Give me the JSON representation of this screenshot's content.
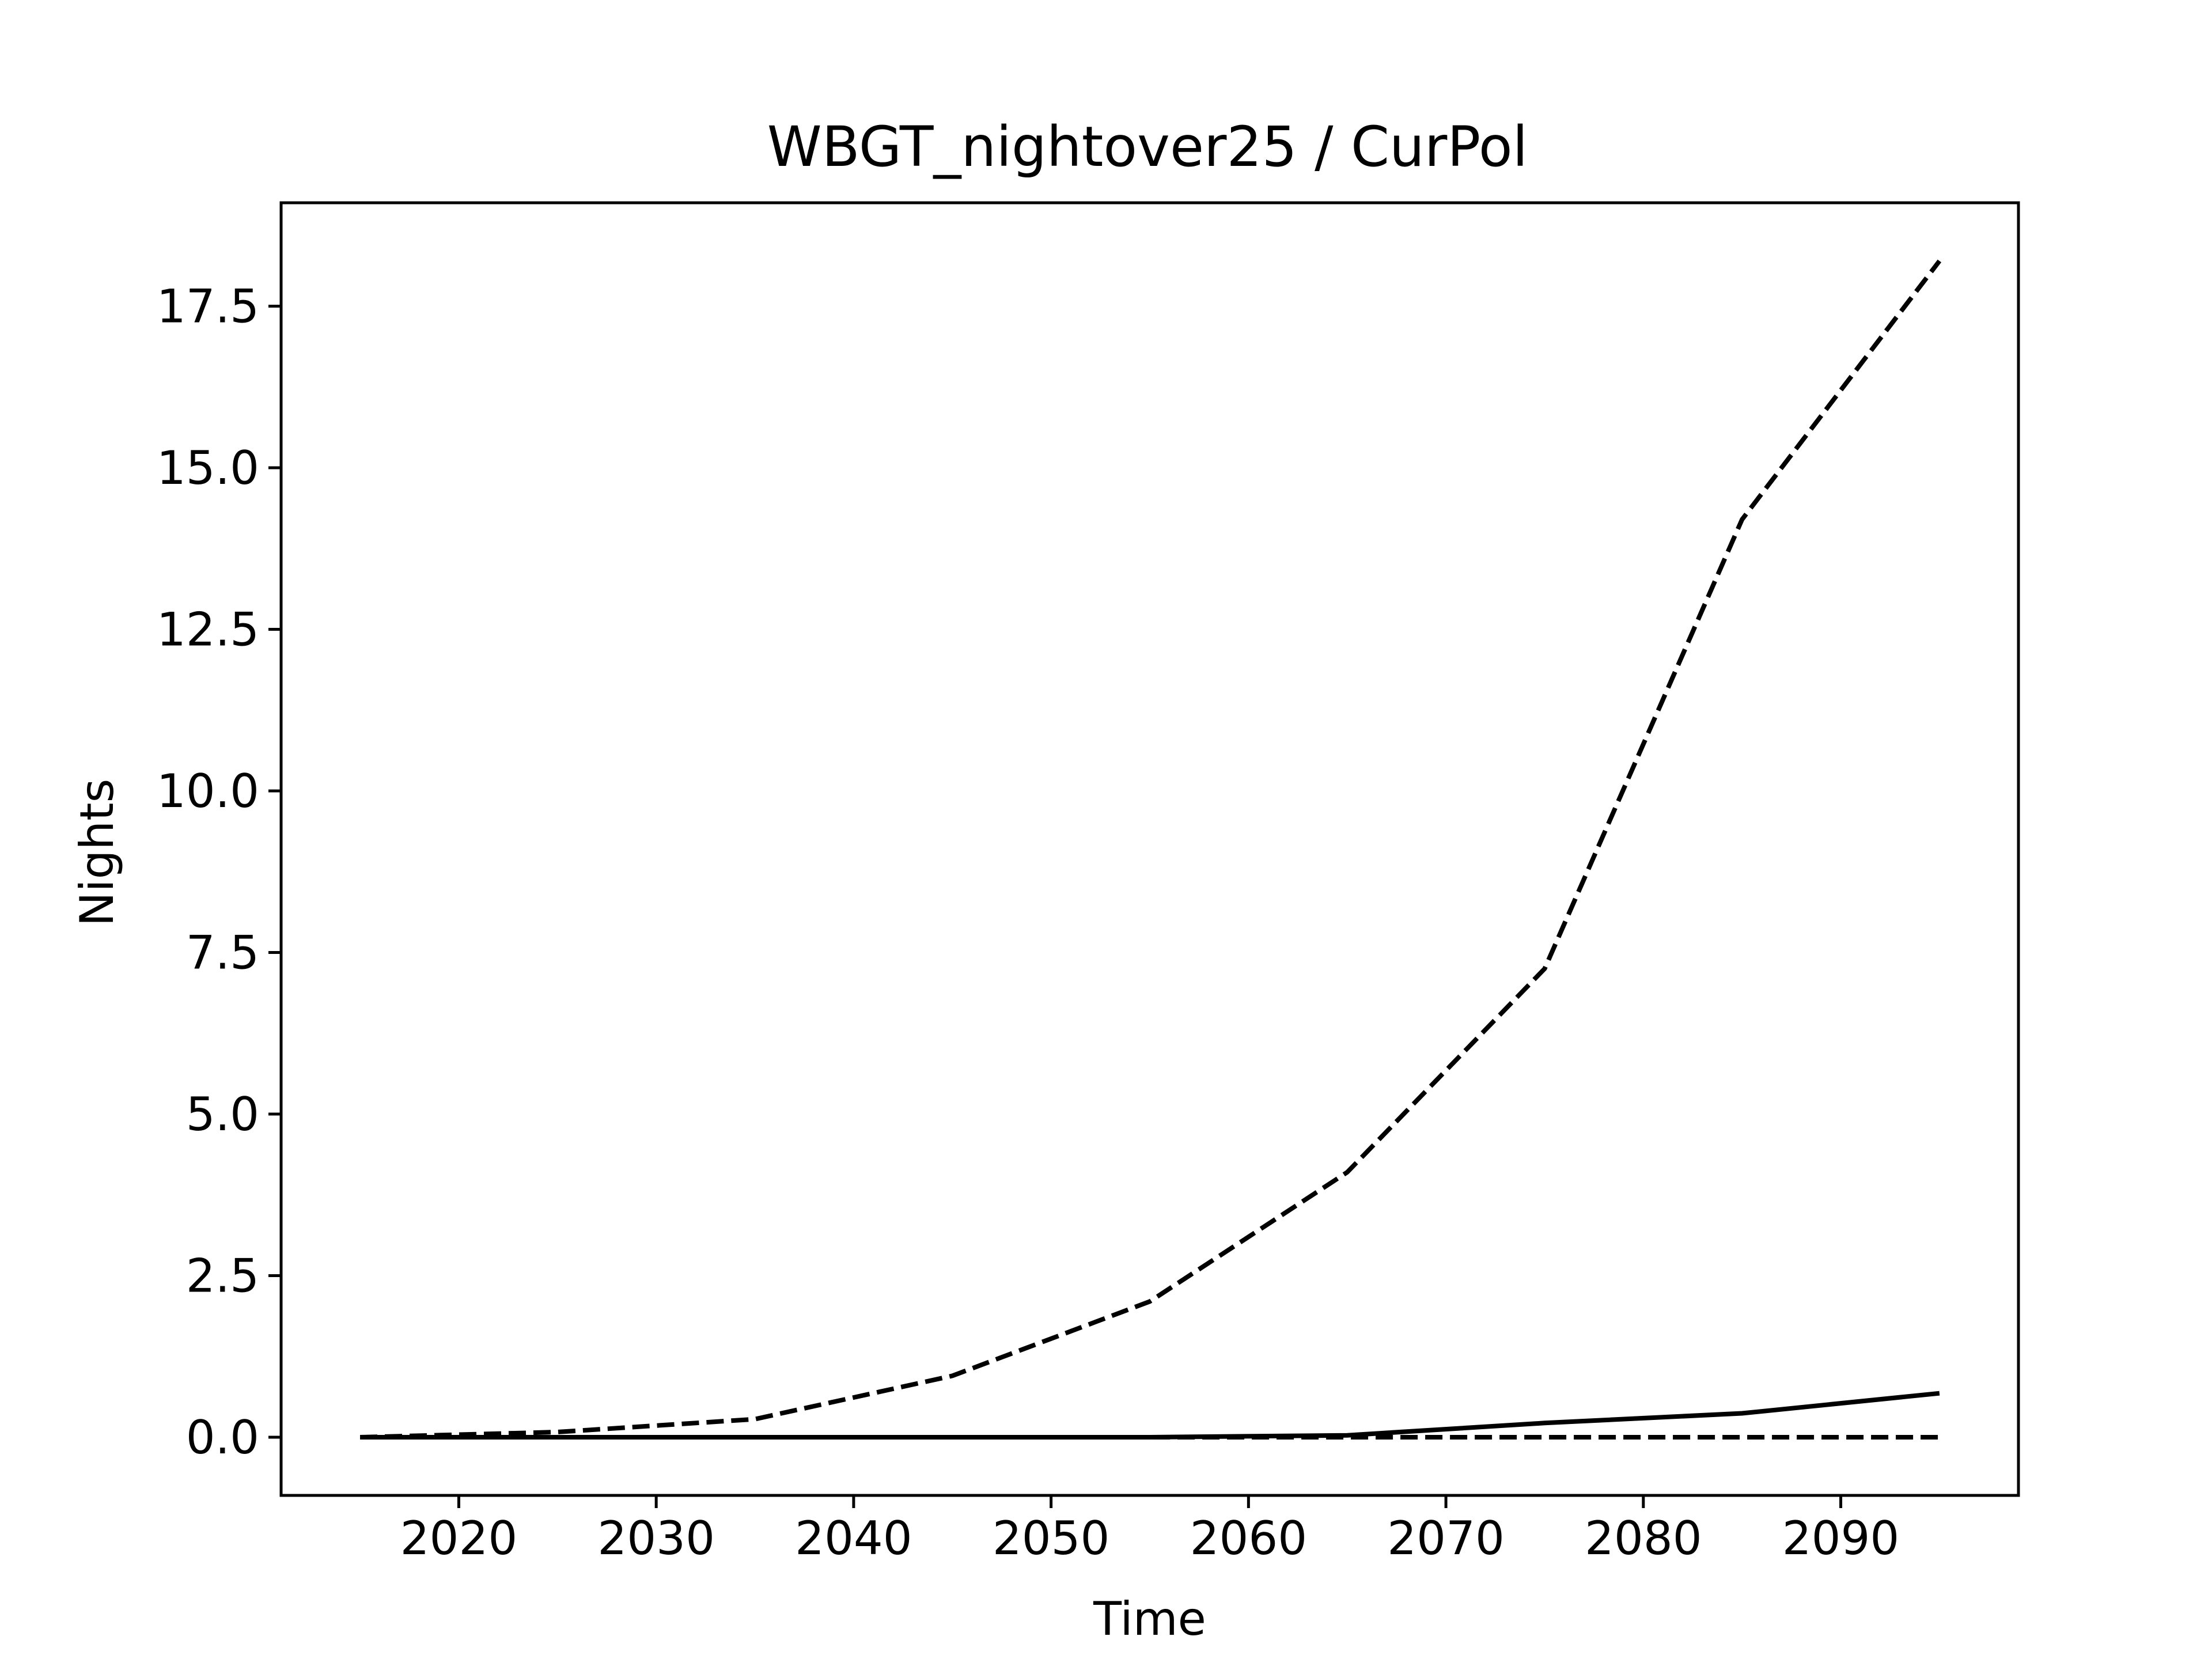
{
  "chart_data": {
    "type": "line",
    "title": "WBGT_nightover25 / CurPol",
    "xlabel": "Time",
    "ylabel": "Nights",
    "xlim": [
      2011,
      2099
    ],
    "ylim": [
      -0.9,
      19.1
    ],
    "xticks": [
      2020,
      2030,
      2040,
      2050,
      2060,
      2070,
      2080,
      2090
    ],
    "yticks": [
      0.0,
      2.5,
      5.0,
      7.5,
      10.0,
      12.5,
      15.0,
      17.5
    ],
    "ytick_labels": [
      "0.0",
      "2.5",
      "5.0",
      "7.5",
      "10.0",
      "12.5",
      "15.0",
      "17.5"
    ],
    "grid": false,
    "x": [
      2015,
      2025,
      2035,
      2045,
      2055,
      2065,
      2075,
      2085,
      2095
    ],
    "series": [
      {
        "style": "dashed",
        "color": "#000000",
        "values": [
          0.0,
          0.08,
          0.28,
          0.95,
          2.1,
          4.1,
          7.25,
          14.2,
          18.2
        ]
      },
      {
        "style": "solid",
        "color": "#000000",
        "values": [
          0.0,
          0.0,
          0.0,
          0.0,
          0.0,
          0.03,
          0.22,
          0.37,
          0.68
        ]
      },
      {
        "style": "dashed",
        "color": "#000000",
        "values": [
          0.0,
          0.0,
          0.0,
          0.0,
          0.0,
          0.0,
          0.0,
          0.0,
          0.0
        ]
      }
    ]
  }
}
